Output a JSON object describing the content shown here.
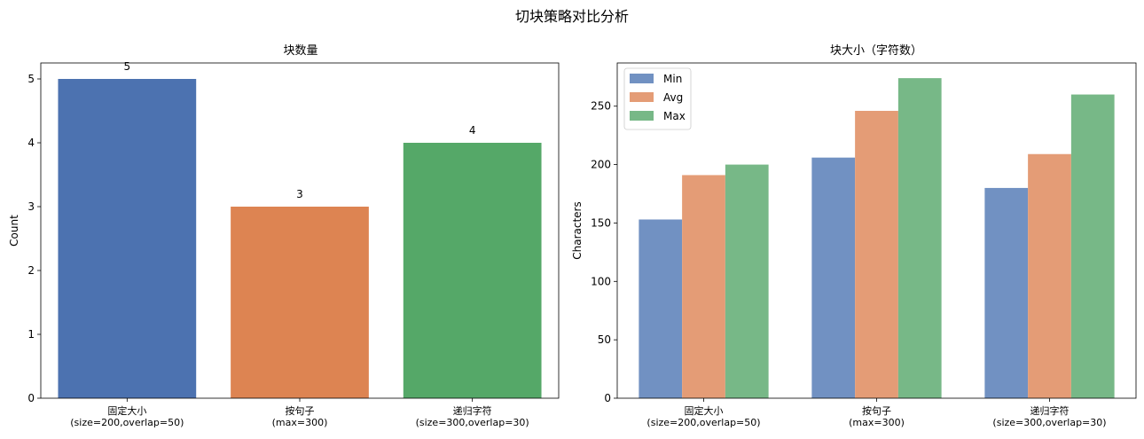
{
  "figure": {
    "title": "切块策略对比分析"
  },
  "chart_data": [
    {
      "type": "bar",
      "title": "块数量",
      "xlabel": "",
      "ylabel": "Count",
      "categories": [
        "固定大小\n(size=200,overlap=50)",
        "按句子\n(max=300)",
        "递归字符\n(size=300,overlap=30)"
      ],
      "values": [
        5,
        3,
        4
      ],
      "bar_labels": [
        "5",
        "3",
        "4"
      ],
      "colors": [
        "#4c72b0",
        "#dd8452",
        "#55a868"
      ],
      "ylim": [
        0,
        5.25
      ],
      "yticks": [
        0,
        1,
        2,
        3,
        4,
        5
      ],
      "grid": false
    },
    {
      "type": "bar",
      "title": "块大小（字符数）",
      "xlabel": "",
      "ylabel": "Characters",
      "categories": [
        "固定大小\n(size=200,overlap=50)",
        "按句子\n(max=300)",
        "递归字符\n(size=300,overlap=30)"
      ],
      "series": [
        {
          "name": "Min",
          "values": [
            153,
            206,
            180
          ],
          "color": "#7191c2"
        },
        {
          "name": "Avg",
          "values": [
            191,
            246,
            209
          ],
          "color": "#e49c76"
        },
        {
          "name": "Max",
          "values": [
            200,
            274,
            260
          ],
          "color": "#77b887"
        }
      ],
      "ylim": [
        0,
        287
      ],
      "yticks": [
        0,
        50,
        100,
        150,
        200,
        250
      ],
      "legend": "top-left",
      "grid": false
    }
  ]
}
